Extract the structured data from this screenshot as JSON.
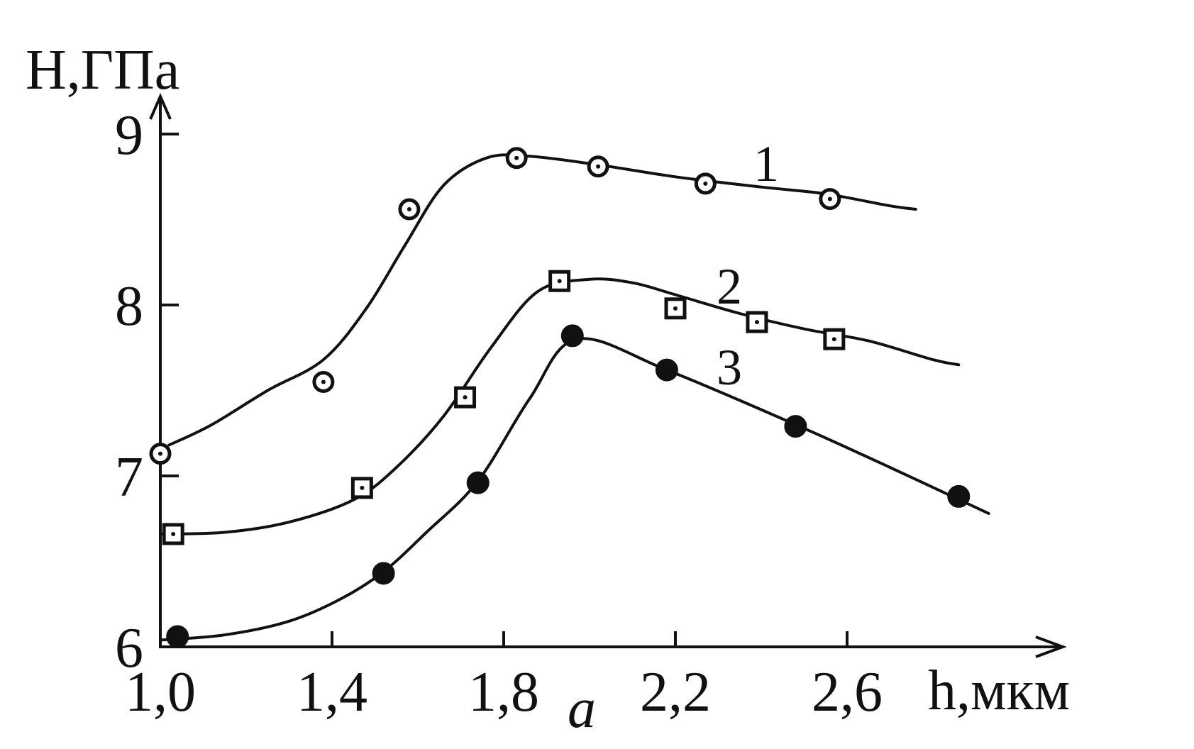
{
  "chart_data": {
    "type": "line",
    "ylabel": "H,ГПа",
    "xlabel": "h,мкм",
    "panel_label": "a",
    "xlim": [
      1.0,
      3.05
    ],
    "ylim": [
      6,
      9.6
    ],
    "x_ticks": [
      1.0,
      1.4,
      1.8,
      2.2,
      2.6
    ],
    "x_tick_labels": [
      "1,0",
      "1,4",
      "1,8",
      "2,2",
      "2,6"
    ],
    "y_ticks": [
      6,
      7,
      8,
      9
    ],
    "y_tick_labels": [
      "6",
      "7",
      "8",
      "9"
    ],
    "series": [
      {
        "name": "1",
        "marker": "open-circle",
        "points": [
          [
            1.0,
            7.13
          ],
          [
            1.38,
            7.55
          ],
          [
            1.58,
            8.56
          ],
          [
            1.83,
            8.86
          ],
          [
            2.02,
            8.81
          ],
          [
            2.27,
            8.71
          ],
          [
            2.56,
            8.62
          ]
        ],
        "curve": [
          [
            1.02,
            7.18
          ],
          [
            1.12,
            7.3
          ],
          [
            1.25,
            7.5
          ],
          [
            1.38,
            7.68
          ],
          [
            1.48,
            7.98
          ],
          [
            1.57,
            8.35
          ],
          [
            1.66,
            8.7
          ],
          [
            1.76,
            8.86
          ],
          [
            1.86,
            8.87
          ],
          [
            2.02,
            8.82
          ],
          [
            2.2,
            8.75
          ],
          [
            2.4,
            8.69
          ],
          [
            2.55,
            8.65
          ],
          [
            2.7,
            8.58
          ],
          [
            2.76,
            8.56
          ]
        ]
      },
      {
        "name": "2",
        "marker": "open-square",
        "points": [
          [
            1.03,
            6.66
          ],
          [
            1.47,
            6.93
          ],
          [
            1.71,
            7.46
          ],
          [
            1.93,
            8.14
          ],
          [
            2.2,
            7.98
          ],
          [
            2.39,
            7.9
          ],
          [
            2.57,
            7.8
          ]
        ],
        "curve": [
          [
            1.0,
            6.66
          ],
          [
            1.15,
            6.67
          ],
          [
            1.3,
            6.73
          ],
          [
            1.45,
            6.86
          ],
          [
            1.55,
            7.05
          ],
          [
            1.66,
            7.35
          ],
          [
            1.77,
            7.75
          ],
          [
            1.88,
            8.08
          ],
          [
            2.0,
            8.15
          ],
          [
            2.1,
            8.13
          ],
          [
            2.2,
            8.06
          ],
          [
            2.35,
            7.95
          ],
          [
            2.5,
            7.86
          ],
          [
            2.65,
            7.79
          ],
          [
            2.8,
            7.68
          ],
          [
            2.86,
            7.65
          ]
        ]
      },
      {
        "name": "3",
        "marker": "filled-circle",
        "points": [
          [
            1.04,
            6.06
          ],
          [
            1.52,
            6.43
          ],
          [
            1.74,
            6.96
          ],
          [
            1.96,
            7.82
          ],
          [
            2.18,
            7.62
          ],
          [
            2.48,
            7.29
          ],
          [
            2.86,
            6.88
          ]
        ],
        "curve": [
          [
            1.0,
            6.04
          ],
          [
            1.15,
            6.07
          ],
          [
            1.3,
            6.15
          ],
          [
            1.42,
            6.28
          ],
          [
            1.52,
            6.44
          ],
          [
            1.62,
            6.67
          ],
          [
            1.74,
            6.97
          ],
          [
            1.86,
            7.45
          ],
          [
            1.97,
            7.8
          ],
          [
            2.18,
            7.62
          ],
          [
            2.48,
            7.3
          ],
          [
            2.7,
            7.05
          ],
          [
            2.93,
            6.78
          ]
        ]
      }
    ]
  }
}
